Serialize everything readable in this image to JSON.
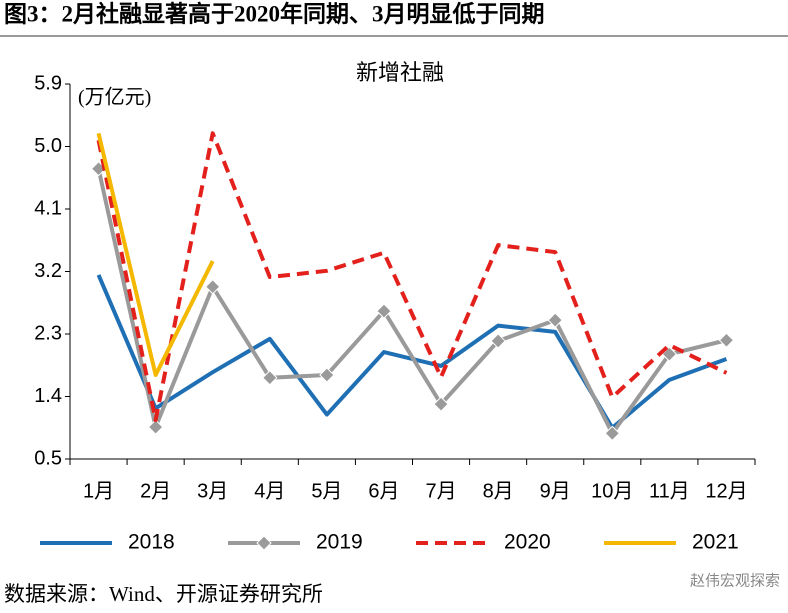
{
  "figure_title": "图3：2月社融显著高于2020年同期、3月明显低于同期",
  "source": "数据来源：Wind、开源证券研究所",
  "watermark": "赵伟宏观探索",
  "chart_data": {
    "type": "line",
    "title": "新增社融",
    "y_label": "(万亿元)",
    "categories": [
      "1月",
      "2月",
      "3月",
      "4月",
      "5月",
      "6月",
      "7月",
      "8月",
      "9月",
      "10月",
      "11月",
      "12月"
    ],
    "ylim": [
      0.5,
      5.9
    ],
    "yticks": [
      0.5,
      1.4,
      2.3,
      3.2,
      4.1,
      {
        "value": 5,
        "label": "5.0"
      },
      5.9
    ],
    "grid": false,
    "legend": "bottom",
    "series": [
      {
        "name": "2018",
        "color": "#1f6fb4",
        "dash": "solid",
        "marker": "none",
        "values": [
          3.15,
          1.23,
          1.75,
          2.23,
          1.14,
          2.04,
          1.84,
          2.42,
          2.33,
          0.95,
          1.64,
          1.94
        ]
      },
      {
        "name": "2019",
        "color": "#9a9a9a",
        "dash": "solid",
        "marker": "diamond",
        "values": [
          4.68,
          0.96,
          2.98,
          1.67,
          1.71,
          2.63,
          1.29,
          2.2,
          2.5,
          0.87,
          2.01,
          2.21
        ]
      },
      {
        "name": "2020",
        "color": "#e3201b",
        "dash": "dashed",
        "marker": "none",
        "values": [
          5.09,
          1.06,
          5.19,
          3.12,
          3.21,
          3.47,
          1.68,
          3.58,
          3.48,
          1.39,
          2.14,
          1.74
        ]
      },
      {
        "name": "2021",
        "color": "#f5b800",
        "dash": "solid",
        "marker": "none",
        "values": [
          5.19,
          1.71,
          3.35,
          null,
          null,
          null,
          null,
          null,
          null,
          null,
          null,
          null
        ]
      }
    ]
  }
}
